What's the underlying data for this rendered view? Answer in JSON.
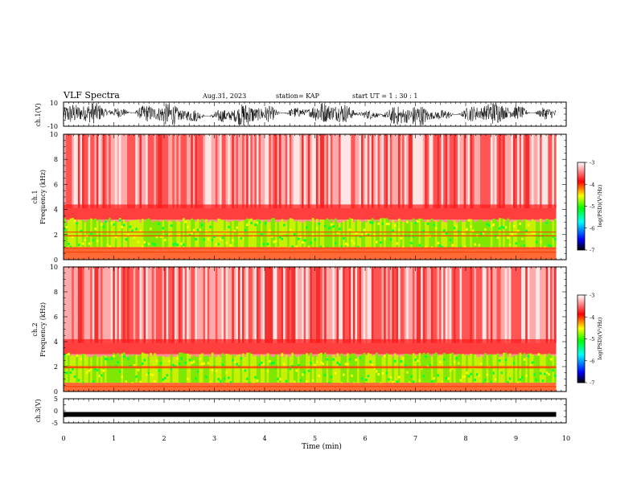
{
  "header": {
    "title": "VLF Spectra",
    "date": "Aug.31, 2023",
    "station": "station= KAP",
    "start": "start  UT =   1 : 30 : 1"
  },
  "chart_data": [
    {
      "type": "line",
      "id": "ch1-waveform",
      "ylabel": "ch.1(V)",
      "ylim": [
        -10,
        10
      ],
      "yticks": [
        "10",
        "-10"
      ],
      "xlim": [
        0,
        10
      ],
      "description_values": {
        "x_end_min": 9.8,
        "amplitude_range_V": [
          -10,
          10
        ]
      }
    },
    {
      "type": "heatmap",
      "id": "ch1-spectrogram",
      "ylabel": "ch.1",
      "ylabel2": "Frequency  (kHz)",
      "ylim": [
        0,
        10
      ],
      "yticks": [
        "0",
        "2",
        "4",
        "6",
        "8",
        "10"
      ],
      "xlim": [
        0,
        9.8
      ],
      "bands_kHz": {
        "green_yellow_low": 1.0,
        "green_yellow_high": 3.2,
        "lines": [
          0.6,
          0.9,
          1.9,
          2.2
        ]
      },
      "colorbar": {
        "label": "log(PSD)(V²/Hz)",
        "ticks": [
          "-3",
          "-4",
          "-5",
          "-6",
          "-7"
        ],
        "range": [
          -7,
          -3
        ],
        "colors": [
          "#000000",
          "#0000ff",
          "#00ffff",
          "#00ff00",
          "#ffff00",
          "#ff0000",
          "#ffffff"
        ]
      }
    },
    {
      "type": "heatmap",
      "id": "ch2-spectrogram",
      "ylabel": "ch.2",
      "ylabel2": "Frequency  (kHz)",
      "ylim": [
        0,
        10
      ],
      "yticks": [
        "0",
        "2",
        "4",
        "6",
        "8",
        "10"
      ],
      "xlim": [
        0,
        9.8
      ],
      "bands_kHz": {
        "green_yellow_low": 0.7,
        "green_yellow_high": 3.0,
        "lines": [
          0.4,
          1.9,
          2.0
        ]
      },
      "colorbar": {
        "label": "log(PSD)(V²/Hz)",
        "ticks": [
          "-3",
          "-4",
          "-5",
          "-6",
          "-7"
        ],
        "range": [
          -7,
          -3
        ],
        "colors": [
          "#000000",
          "#0000ff",
          "#00ffff",
          "#00ff00",
          "#ffff00",
          "#ff0000",
          "#ffffff"
        ]
      }
    },
    {
      "type": "line",
      "id": "ch3-waveform",
      "ylabel": "ch.3(V)",
      "ylim": [
        -5,
        5
      ],
      "yticks": [
        "5",
        "0",
        "-5"
      ],
      "xlim": [
        0,
        10
      ],
      "description_values": {
        "level_V": -1.5,
        "x_end_min": 9.8
      }
    }
  ],
  "xaxis": {
    "label": "Time  (min)",
    "ticks": [
      "0",
      "1",
      "2",
      "3",
      "4",
      "5",
      "6",
      "7",
      "8",
      "9",
      "10"
    ],
    "range": [
      0,
      10
    ]
  }
}
